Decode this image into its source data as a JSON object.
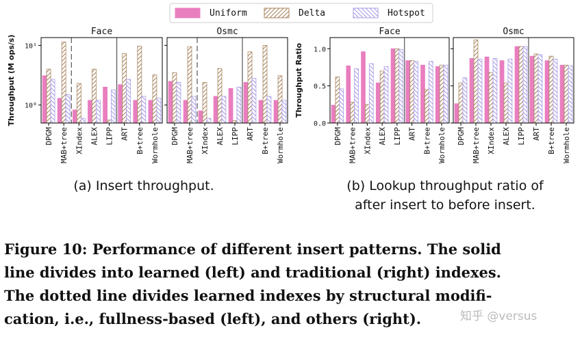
{
  "chart_data": [
    {
      "type": "bar",
      "title": "Face",
      "ylabel": "Throughput (M ops/s)",
      "log_scale": true,
      "categories": [
        "DPGM",
        "MAB+tree",
        "XIndex",
        "ALEX",
        "LIPP",
        "ART",
        "B+tree",
        "Wormhole"
      ],
      "ylim": [
        0.5,
        13.5
      ],
      "yticks": [
        {
          "value": 1,
          "label": "10⁰"
        },
        {
          "value": 10,
          "label": "10¹"
        }
      ],
      "series": [
        {
          "name": "Uniform",
          "color": "#e97ebf",
          "hatch": "none",
          "values": [
            3.1,
            1.3,
            0.83,
            1.2,
            2.0,
            2.2,
            1.2,
            1.2
          ]
        },
        {
          "name": "Delta",
          "color": "#a88660",
          "hatch": "/",
          "values": [
            4.0,
            11.4,
            2.3,
            4.0,
            0.56,
            7.3,
            9.7,
            3.2
          ]
        },
        {
          "name": "Hotspot",
          "color": "#a99be8",
          "hatch": "\\",
          "values": [
            2.7,
            1.5,
            0.6,
            1.2,
            1.8,
            2.7,
            1.4,
            1.3
          ]
        }
      ]
    },
    {
      "type": "bar",
      "title": "Osmc",
      "log_scale": true,
      "categories": [
        "DPGM",
        "MAB+tree",
        "XIndex",
        "ALEX",
        "LIPP",
        "ART",
        "B+tree",
        "Wormhole"
      ],
      "ylim": [
        0.5,
        13.5
      ],
      "series": [
        {
          "name": "Uniform",
          "color": "#e97ebf",
          "hatch": "none",
          "values": [
            2.5,
            1.2,
            0.8,
            1.4,
            1.9,
            2.4,
            1.2,
            1.2
          ]
        },
        {
          "name": "Delta",
          "color": "#a88660",
          "hatch": "/",
          "values": [
            3.5,
            9.5,
            2.4,
            4.1,
            0.55,
            7.8,
            10.0,
            3.1
          ]
        },
        {
          "name": "Hotspot",
          "color": "#a99be8",
          "hatch": "\\",
          "values": [
            2.4,
            1.4,
            0.6,
            1.4,
            2.0,
            2.8,
            1.4,
            1.2
          ]
        }
      ]
    },
    {
      "type": "bar",
      "title": "Face",
      "ylabel": "Throughput Ratio",
      "log_scale": false,
      "categories": [
        "DPGM",
        "MAB+tree",
        "XIndex",
        "ALEX",
        "LIPP",
        "ART",
        "B+tree",
        "Wormhole"
      ],
      "ylim": [
        0,
        1.15
      ],
      "yticks": [
        {
          "value": 0,
          "label": "0.0"
        },
        {
          "value": 0.5,
          "label": "0.5"
        },
        {
          "value": 1,
          "label": "1.0"
        }
      ],
      "series": [
        {
          "name": "Uniform",
          "color": "#e97ebf",
          "hatch": "none",
          "values": [
            0.24,
            0.77,
            0.96,
            0.54,
            1.0,
            0.84,
            0.78,
            0.76
          ]
        },
        {
          "name": "Delta",
          "color": "#a88660",
          "hatch": "/",
          "values": [
            0.62,
            0.28,
            0.25,
            0.7,
            1.0,
            0.84,
            0.45,
            0.78
          ]
        },
        {
          "name": "Hotspot",
          "color": "#a99be8",
          "hatch": "\\",
          "values": [
            0.46,
            0.73,
            0.8,
            0.76,
            0.99,
            0.83,
            0.83,
            0.78
          ]
        }
      ]
    },
    {
      "type": "bar",
      "title": "Osmc",
      "log_scale": false,
      "categories": [
        "DPGM",
        "MAB+tree",
        "XIndex",
        "ALEX",
        "LIPP",
        "ART",
        "B+tree",
        "Wormhole"
      ],
      "ylim": [
        0,
        1.15
      ],
      "series": [
        {
          "name": "Uniform",
          "color": "#e97ebf",
          "hatch": "none",
          "values": [
            0.26,
            0.87,
            0.89,
            0.84,
            1.03,
            0.9,
            0.84,
            0.78
          ]
        },
        {
          "name": "Delta",
          "color": "#a88660",
          "hatch": "/",
          "values": [
            0.54,
            1.12,
            0.68,
            0.54,
            1.03,
            0.93,
            0.9,
            0.78
          ]
        },
        {
          "name": "Hotspot",
          "color": "#a99be8",
          "hatch": "\\",
          "values": [
            0.61,
            0.86,
            0.87,
            0.86,
            1.03,
            0.92,
            0.86,
            0.77
          ]
        }
      ]
    }
  ],
  "subcaption_a": "(a) Insert throughput.",
  "subcaption_b": [
    "(b) Lookup throughput ratio of",
    "after insert to before insert."
  ],
  "figure_caption": [
    "Figure 10: Performance of different insert patterns. The solid",
    "line divides into learned (left) and traditional (right) indexes.",
    "The dotted line divides learned indexes by structural modifi-",
    "cation, i.e., fullness-based (left), and others (right)."
  ],
  "watermark": "知乎 @versus"
}
